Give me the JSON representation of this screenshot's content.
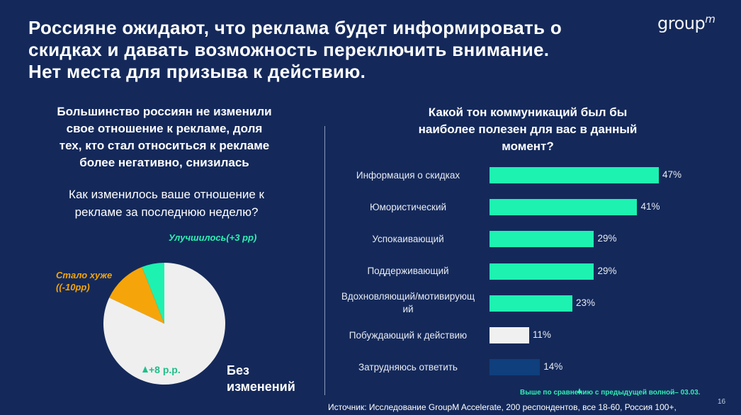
{
  "title": {
    "line1": "Россияне ожидают, что реклама будет информировать о",
    "line2": "скидках и давать возможность переключить внимание.",
    "line3": "Нет места для призыва к действию."
  },
  "logo": {
    "main": "group",
    "sup": "m"
  },
  "left": {
    "headline_lines": [
      "Большинство россиян не изменили",
      "свое отношение к рекламе, доля",
      "тех, кто стал относиться к рекламе",
      "более негативно, снизилась"
    ],
    "question_lines": [
      "Как изменилось ваше отношение к",
      "рекламе за последнюю неделю?"
    ]
  },
  "right": {
    "headline_lines": [
      "Какой тон коммуникаций был бы",
      "наиболее полезен для вас в данный",
      "момент?"
    ]
  },
  "footer": {
    "note": "Выше по сравнению с предыдущей волной– 03.03.",
    "source": "Источник: Исследование GroupM Accelerate, 200 респондентов, все 18-60, Россия 100+,",
    "page": "16"
  },
  "colors": {
    "background": "#14295a",
    "teal": "#1df2b1",
    "white_bar": "#f0f0f0",
    "navy_bar": "#0f3f7c",
    "orange": "#f5a50a",
    "pie_grey": "#efefef"
  },
  "chart_data": [
    {
      "type": "pie",
      "title": "Как изменилось ваше отношение к рекламе за последнюю неделю?",
      "slices": [
        {
          "label": "Без изменений",
          "value": 82,
          "color": "#efefef",
          "note_lines": [
            "Без",
            "изменений"
          ],
          "delta": "+8 р.р."
        },
        {
          "label": "Стало хуже",
          "value": 12,
          "color": "#f5a50a",
          "note_lines": [
            "Стало хуже",
            "((-10pp)"
          ]
        },
        {
          "label": "Улучшилось",
          "value": 6,
          "color": "#1df2b1",
          "note_lines": [
            "Улучшилось(+3 pp)"
          ]
        }
      ]
    },
    {
      "type": "bar",
      "orientation": "horizontal",
      "title": "Какой тон коммуникаций был бы наиболее полезен для вас в данный момент?",
      "xlim": [
        0,
        47
      ],
      "categories": [
        {
          "lines": [
            "Информация о скидках"
          ]
        },
        {
          "lines": [
            "Юмористический"
          ]
        },
        {
          "lines": [
            "Успокаивающий"
          ]
        },
        {
          "lines": [
            "Поддерживающий"
          ]
        },
        {
          "lines": [
            "Вдохновляющий/мотивирующ",
            "ий"
          ]
        },
        {
          "lines": [
            "Побуждающий к действию"
          ]
        },
        {
          "lines": [
            "Затрудняюсь ответить"
          ]
        }
      ],
      "values": [
        47,
        41,
        29,
        29,
        23,
        11,
        14
      ],
      "value_labels": [
        "47%",
        "41%",
        "29%",
        "29%",
        "23%",
        "11%",
        "14%"
      ],
      "bar_colors": [
        "#1df2b1",
        "#1df2b1",
        "#1df2b1",
        "#1df2b1",
        "#1df2b1",
        "#f0f0f0",
        "#0f3f7c"
      ]
    }
  ]
}
